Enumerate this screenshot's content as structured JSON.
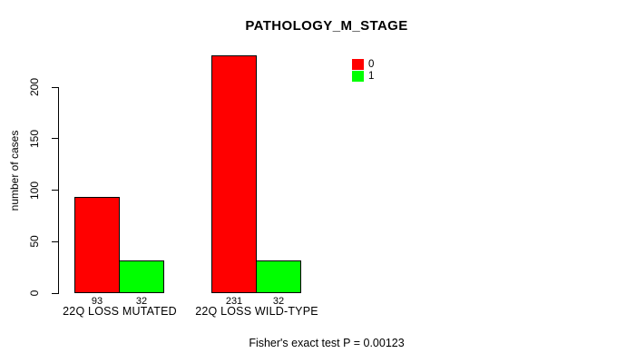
{
  "chart_data": {
    "type": "bar",
    "title": "PATHOLOGY_M_STAGE",
    "xlabel": "",
    "ylabel": "number of cases",
    "categories": [
      "22Q LOSS MUTATED",
      "22Q LOSS WILD-TYPE"
    ],
    "series": [
      {
        "name": "0",
        "color": "#FF0000",
        "values": [
          93,
          231
        ]
      },
      {
        "name": "1",
        "color": "#00FF00",
        "values": [
          32,
          32
        ]
      }
    ],
    "bar_value_labels": [
      [
        93,
        32
      ],
      [
        231,
        32
      ]
    ],
    "yticks": [
      0,
      50,
      100,
      150,
      200
    ],
    "ylim": [
      0,
      235
    ],
    "grid": false,
    "legend_position": "top-right",
    "legend_entries": [
      {
        "label": "0",
        "color": "#FF0000"
      },
      {
        "label": "1",
        "color": "#00FF00"
      }
    ],
    "annotation": "Fisher's exact test P = 0.00123",
    "bar_border_color": "#000000",
    "background_color": "#FFFFFF"
  }
}
